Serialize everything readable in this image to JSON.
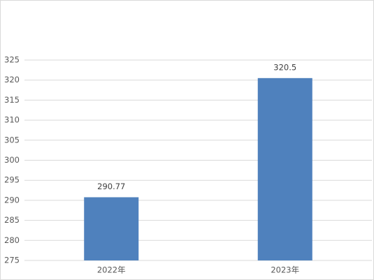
{
  "chart_data": {
    "type": "bar",
    "categories": [
      "2022年",
      "2023年"
    ],
    "values": [
      290.77,
      320.5
    ],
    "color": "#4f81bd",
    "ylim": [
      275,
      325
    ],
    "yticks": [
      275,
      280,
      285,
      290,
      295,
      300,
      305,
      310,
      315,
      320,
      325
    ],
    "grid": true
  }
}
